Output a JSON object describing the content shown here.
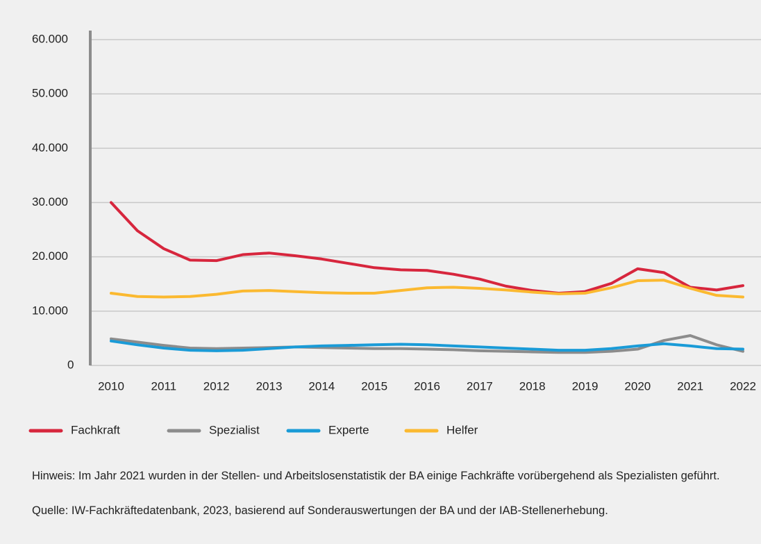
{
  "chart_data": {
    "type": "line",
    "categories": [
      "2010",
      null,
      "2011",
      null,
      "2012",
      null,
      "2013",
      null,
      "2014",
      null,
      "2015",
      null,
      "2016",
      null,
      "2017",
      null,
      "2018",
      null,
      "2019",
      null,
      "2020",
      null,
      "2021",
      null,
      "2022"
    ],
    "series": [
      {
        "name": "Fachkraft",
        "color": "#d7263d",
        "values": [
          30000,
          24800,
          21500,
          19400,
          19300,
          20400,
          20700,
          20200,
          19600,
          18800,
          18000,
          17600,
          17500,
          16800,
          15900,
          14600,
          13800,
          13300,
          13600,
          15100,
          17800,
          17100,
          14400,
          13900,
          14700
        ]
      },
      {
        "name": "Spezialist",
        "color": "#8c8c8c",
        "values": [
          4900,
          4300,
          3700,
          3200,
          3100,
          3200,
          3300,
          3400,
          3300,
          3200,
          3100,
          3100,
          3000,
          2900,
          2700,
          2600,
          2500,
          2400,
          2400,
          2600,
          3000,
          4600,
          5500,
          3800,
          2600
        ]
      },
      {
        "name": "Experte",
        "color": "#1a9bd7",
        "values": [
          4500,
          3800,
          3200,
          2800,
          2700,
          2800,
          3100,
          3400,
          3600,
          3700,
          3800,
          3900,
          3800,
          3600,
          3400,
          3200,
          3000,
          2800,
          2800,
          3100,
          3600,
          4000,
          3600,
          3100,
          3000
        ]
      },
      {
        "name": "Helfer",
        "color": "#fbb930",
        "values": [
          13300,
          12700,
          12600,
          12700,
          13100,
          13700,
          13800,
          13600,
          13400,
          13300,
          13300,
          13800,
          14300,
          14400,
          14200,
          13900,
          13500,
          13200,
          13300,
          14300,
          15600,
          15700,
          14200,
          12900,
          12600
        ]
      }
    ],
    "ylim": [
      0,
      60000
    ],
    "yticks": [
      0,
      {
        "value": 10000,
        "label": "10.000"
      },
      {
        "value": 20000,
        "label": "20.000"
      },
      {
        "value": 30000,
        "label": "30.000"
      },
      {
        "value": 40000,
        "label": "40.000"
      },
      {
        "value": 50000,
        "label": "50.000"
      },
      {
        "value": 60000,
        "label": "60.000"
      }
    ],
    "grid": true,
    "legend": "bottom",
    "annotations": [
      "Hinweis: Im Jahr 2021 wurden in der Stellen- und Arbeitslosenstatistik der BA einige Fachkräfte vorübergehend als Spezialisten geführt.",
      "Quelle: IW-Fachkräftedatenbank, 2023, basierend auf Sonderauswertungen der BA und der IAB-Stellenerhebung."
    ]
  }
}
